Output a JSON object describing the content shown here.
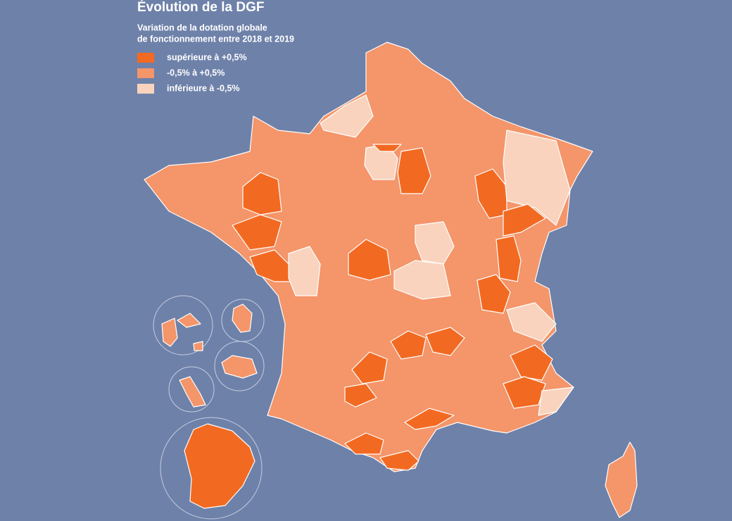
{
  "title": "Évolution de la DGF",
  "subtitle": [
    "Variation de la dotation globale",
    "de fonctionnement entre 2018 et 2019"
  ],
  "legend": {
    "items": [
      {
        "label": "supérieure à +0,5%",
        "color": "#f26a21"
      },
      {
        "label": "-0,5% à +0,5%",
        "color": "#f4956a"
      },
      {
        "label": "inférieure à -0,5%",
        "color": "#f9d3bd"
      }
    ]
  }
}
